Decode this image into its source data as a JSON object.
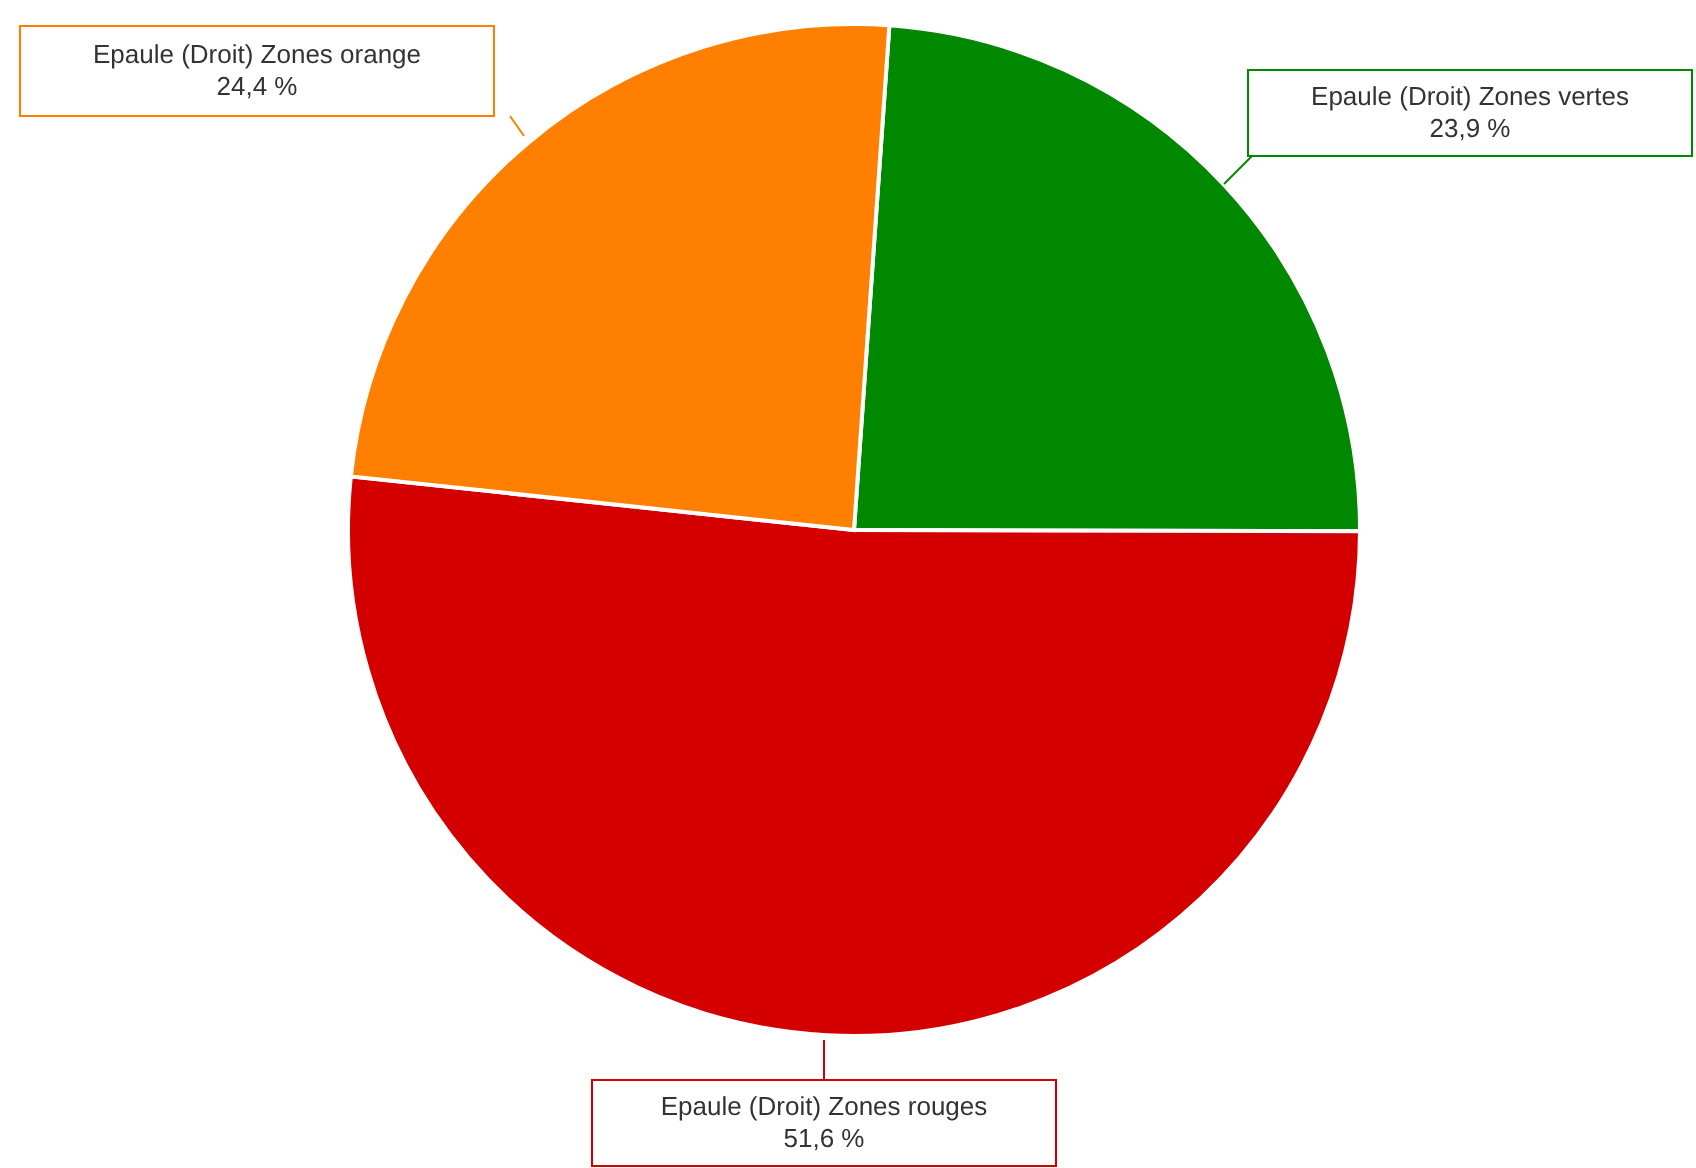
{
  "chart_data": {
    "type": "pie",
    "categories": [
      "Epaule (Droit) Zones vertes",
      "Epaule (Droit) Zones rouges",
      "Epaule (Droit) Zones orange"
    ],
    "values": [
      23.9,
      51.6,
      24.4
    ],
    "colors": [
      "#008800",
      "#d40000",
      "#ff7f00"
    ],
    "value_labels": [
      "23,9 %",
      "51,6 %",
      "24,4 %"
    ]
  }
}
